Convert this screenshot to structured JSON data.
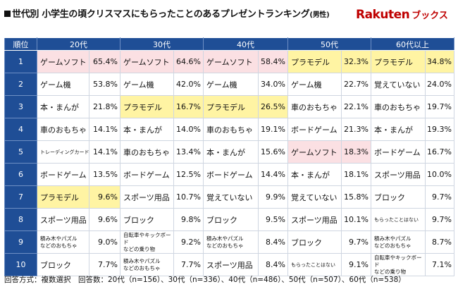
{
  "header": {
    "title": "世代別 小学生の頃クリスマスにもらったことのあるプレゼントランキング",
    "title_suffix": "(男性)",
    "logo_brand": "Rakuten",
    "logo_service": "ブックス"
  },
  "highlight_colors": {
    "yellow": "#fff4a3",
    "pink": "#fbe0e3",
    "header": "#1f4e96"
  },
  "chart_data": {
    "type": "table",
    "columns": [
      "順位",
      "20代",
      "30代",
      "40代",
      "50代",
      "60代以上"
    ],
    "rows": [
      {
        "rank": "1",
        "cells": [
          {
            "item": "ゲームソフト",
            "pct": "65.4%",
            "hl": "pink"
          },
          {
            "item": "ゲームソフト",
            "pct": "64.6%",
            "hl": "pink"
          },
          {
            "item": "ゲームソフト",
            "pct": "58.4%",
            "hl": "pink"
          },
          {
            "item": "プラモデル",
            "pct": "32.3%",
            "hl": "yellow"
          },
          {
            "item": "プラモデル",
            "pct": "34.8%",
            "hl": "yellow"
          }
        ]
      },
      {
        "rank": "2",
        "cells": [
          {
            "item": "ゲーム機",
            "pct": "53.8%"
          },
          {
            "item": "ゲーム機",
            "pct": "42.0%"
          },
          {
            "item": "ゲーム機",
            "pct": "34.0%"
          },
          {
            "item": "ゲーム機",
            "pct": "22.7%"
          },
          {
            "item": "覚えていない",
            "pct": "24.0%"
          }
        ]
      },
      {
        "rank": "3",
        "cells": [
          {
            "item": "本・まんが",
            "pct": "21.8%"
          },
          {
            "item": "プラモデル",
            "pct": "16.7%",
            "hl": "yellow"
          },
          {
            "item": "プラモデル",
            "pct": "26.5%",
            "hl": "yellow"
          },
          {
            "item": "車のおもちゃ",
            "pct": "22.1%"
          },
          {
            "item": "車のおもちゃ",
            "pct": "19.7%"
          }
        ]
      },
      {
        "rank": "4",
        "cells": [
          {
            "item": "車のおもちゃ",
            "pct": "14.1%"
          },
          {
            "item": "本・まんが",
            "pct": "14.0%"
          },
          {
            "item": "車のおもちゃ",
            "pct": "19.1%"
          },
          {
            "item": "ボードゲーム",
            "pct": "21.3%"
          },
          {
            "item": "本・まんが",
            "pct": "19.3%"
          }
        ]
      },
      {
        "rank": "5",
        "cells": [
          {
            "item": "トレーディングカード",
            "pct": "14.1%",
            "size": "xs"
          },
          {
            "item": "車のおもちゃ",
            "pct": "13.4%"
          },
          {
            "item": "本・まんが",
            "pct": "15.6%"
          },
          {
            "item": "ゲームソフト",
            "pct": "18.3%",
            "hl": "pink"
          },
          {
            "item": "ボードゲーム",
            "pct": "16.7%"
          }
        ]
      },
      {
        "rank": "6",
        "cells": [
          {
            "item": "ボードゲーム",
            "pct": "13.5%"
          },
          {
            "item": "ボードゲーム",
            "pct": "12.5%"
          },
          {
            "item": "ボードゲーム",
            "pct": "14.4%"
          },
          {
            "item": "本・まんが",
            "pct": "18.1%"
          },
          {
            "item": "スポーツ用品",
            "pct": "10.0%"
          }
        ]
      },
      {
        "rank": "7",
        "cells": [
          {
            "item": "プラモデル",
            "pct": "9.6%",
            "hl": "yellow"
          },
          {
            "item": "スポーツ用品",
            "pct": "10.7%"
          },
          {
            "item": "覚えていない",
            "pct": "9.9%"
          },
          {
            "item": "覚えていない",
            "pct": "15.8%"
          },
          {
            "item": "ブロック",
            "pct": "9.7%"
          }
        ]
      },
      {
        "rank": "8",
        "cells": [
          {
            "item": "スポーツ用品",
            "pct": "9.6%"
          },
          {
            "item": "ブロック",
            "pct": "9.8%"
          },
          {
            "item": "ブロック",
            "pct": "9.5%"
          },
          {
            "item": "スポーツ用品",
            "pct": "10.1%"
          },
          {
            "item": "もらったことはない",
            "pct": "9.7%",
            "size": "xs"
          }
        ]
      },
      {
        "rank": "9",
        "cells": [
          {
            "item": "積み木やパズル\nなどのおもちゃ",
            "pct": "9.0%",
            "size": "sm"
          },
          {
            "item": "自転車やキックボード\nなどの乗り物",
            "pct": "9.2%",
            "size": "sm"
          },
          {
            "item": "積み木やパズル\nなどのおもちゃ",
            "pct": "8.4%",
            "size": "sm"
          },
          {
            "item": "ブロック",
            "pct": "9.7%"
          },
          {
            "item": "積み木やパズル\nなどのおもちゃ",
            "pct": "8.7%",
            "size": "sm"
          }
        ]
      },
      {
        "rank": "10",
        "cells": [
          {
            "item": "ブロック",
            "pct": "7.7%"
          },
          {
            "item": "積み木やパズル\nなどのおもちゃ",
            "pct": "7.7%",
            "size": "sm"
          },
          {
            "item": "スポーツ用品",
            "pct": "8.4%"
          },
          {
            "item": "もらったことはない",
            "pct": "9.1%",
            "size": "xs"
          },
          {
            "item": "自転車やキックボード\nなどの乗り物",
            "pct": "7.1%",
            "size": "sm"
          }
        ]
      }
    ]
  },
  "footer": "回答方式：複数選択　回答数：20代（n=156）、30代（n=336）、40代（n=486）、50代（n=507）、60代（n=538）"
}
